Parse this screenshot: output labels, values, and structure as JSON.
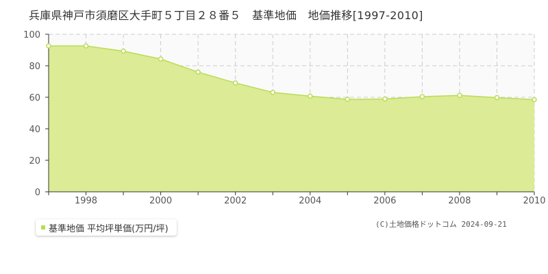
{
  "title": "兵庫県神戸市須磨区大手町５丁目２８番５　基準地価　地価推移[1997-2010]",
  "legend": {
    "label": "基準地価 平均坪単価(万円/坪)"
  },
  "credit": "(C)土地価格ドットコム 2024-09-21",
  "colors": {
    "fill": "#dceb96",
    "line": "#b9dc55",
    "marker": "#b9dc55",
    "grid": "#cccccc",
    "plot_bg": "#fafafa"
  },
  "chart_data": {
    "type": "area",
    "x": [
      1997,
      1998,
      1999,
      2000,
      2001,
      2002,
      2003,
      2004,
      2005,
      2006,
      2007,
      2008,
      2009,
      2010
    ],
    "series": [
      {
        "name": "基準地価 平均坪単価(万円/坪)",
        "values": [
          92.6,
          92.6,
          89.3,
          84.3,
          76.0,
          69.1,
          63.1,
          60.7,
          58.7,
          58.9,
          60.4,
          61.2,
          59.8,
          58.5
        ]
      }
    ],
    "xlim": [
      1997,
      2010
    ],
    "ylim": [
      0,
      100
    ],
    "yticks": [
      0,
      20,
      40,
      60,
      80,
      100
    ],
    "xticks": [
      1998,
      2000,
      2002,
      2004,
      2006,
      2008,
      2010
    ],
    "grid": true,
    "legend_position": "bottom-left"
  }
}
